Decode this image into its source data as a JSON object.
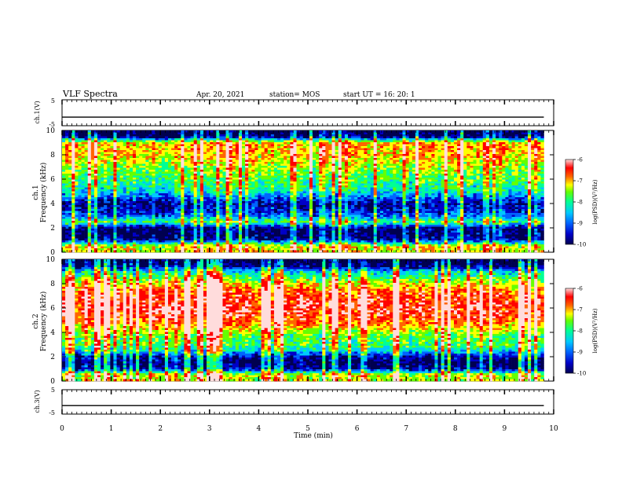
{
  "header": {
    "title": "VLF Spectra",
    "date": "Apr. 20, 2021",
    "station": "station= MOS",
    "start": "start  UT =   16: 20: 1"
  },
  "colors": {
    "colormap": [
      "#000050",
      "#0000c8",
      "#0064ff",
      "#00c8ff",
      "#00ff96",
      "#64ff00",
      "#ffff00",
      "#ff6400",
      "#ff0000",
      "#ffdcdc"
    ]
  },
  "chart_data": [
    {
      "type": "line",
      "panel": "ch1-voltage",
      "ylabel": "ch.1(V)",
      "ylim": [
        -5,
        5
      ],
      "yticks": [
        "5",
        "-5"
      ],
      "xlim": [
        0,
        10
      ],
      "series": [
        {
          "values": [
            [
              0,
              -1.7
            ],
            [
              9.8,
              -1.7
            ]
          ]
        }
      ]
    },
    {
      "type": "heatmap",
      "panel": "ch1-spectrogram",
      "ylabel": "ch.1\nFrequency (kHz)",
      "ylim": [
        0,
        10
      ],
      "yticks": [
        "0",
        "2",
        "4",
        "6",
        "8",
        "10"
      ],
      "xlim": [
        0,
        10
      ],
      "data_x_extent": [
        0,
        9.8
      ],
      "colorbar": {
        "label": "log(PSD)(V²/Hz)",
        "range": [
          -10,
          -6
        ],
        "ticks": [
          "-6",
          "-7",
          "-8",
          "-9",
          "-10"
        ]
      },
      "level_profile": [
        [
          0.0,
          -7.5
        ],
        [
          0.5,
          -7.4
        ],
        [
          1.0,
          -9.5
        ],
        [
          1.5,
          -9.8
        ],
        [
          2.0,
          -9.7
        ],
        [
          2.5,
          -8.0
        ],
        [
          3.0,
          -9.0
        ],
        [
          3.5,
          -9.4
        ],
        [
          4.0,
          -9.6
        ],
        [
          4.5,
          -9.0
        ],
        [
          5.0,
          -8.4
        ],
        [
          5.5,
          -8.2
        ],
        [
          6.0,
          -8.0
        ],
        [
          6.5,
          -7.9
        ],
        [
          7.0,
          -7.7
        ],
        [
          7.5,
          -7.5
        ],
        [
          8.0,
          -7.3
        ],
        [
          8.5,
          -7.2
        ],
        [
          9.0,
          -7.3
        ],
        [
          9.5,
          -9.8
        ],
        [
          10.0,
          -10.0
        ]
      ]
    },
    {
      "type": "heatmap",
      "panel": "ch2-spectrogram",
      "ylabel": "ch.2\nFrequency (kHz)",
      "ylim": [
        0,
        10
      ],
      "yticks": [
        "0",
        "2",
        "4",
        "6",
        "8",
        "10"
      ],
      "xlim": [
        0,
        10
      ],
      "data_x_extent": [
        0,
        9.8
      ],
      "colorbar": {
        "label": "log(PSD)(V²/Hz)",
        "range": [
          -10,
          -6
        ],
        "ticks": [
          "-6",
          "-7",
          "-8",
          "-9",
          "-10"
        ]
      },
      "level_profile": [
        [
          0.0,
          -7.6
        ],
        [
          0.5,
          -7.5
        ],
        [
          1.0,
          -9.6
        ],
        [
          1.5,
          -9.9
        ],
        [
          2.0,
          -9.5
        ],
        [
          2.5,
          -8.5
        ],
        [
          3.0,
          -8.0
        ],
        [
          3.5,
          -8.0
        ],
        [
          4.0,
          -7.7
        ],
        [
          4.5,
          -7.2
        ],
        [
          5.0,
          -6.9
        ],
        [
          5.5,
          -6.7
        ],
        [
          6.0,
          -6.6
        ],
        [
          6.5,
          -6.7
        ],
        [
          7.0,
          -6.8
        ],
        [
          7.5,
          -7.0
        ],
        [
          8.0,
          -7.5
        ],
        [
          8.5,
          -8.0
        ],
        [
          9.0,
          -8.6
        ],
        [
          9.5,
          -9.9
        ],
        [
          10.0,
          -10.0
        ]
      ]
    },
    {
      "type": "line",
      "panel": "ch3-voltage",
      "ylabel": "ch.3(V)",
      "ylim": [
        -5,
        5
      ],
      "yticks": [
        "5",
        "-5"
      ],
      "xlim": [
        0,
        10
      ],
      "xlabel": "Time  (min)",
      "xticks": [
        "0",
        "1",
        "2",
        "3",
        "4",
        "5",
        "6",
        "7",
        "8",
        "9",
        "10"
      ],
      "series": [
        {
          "values": [
            [
              0,
              -1.5
            ],
            [
              9.8,
              -1.5
            ]
          ]
        }
      ]
    }
  ]
}
